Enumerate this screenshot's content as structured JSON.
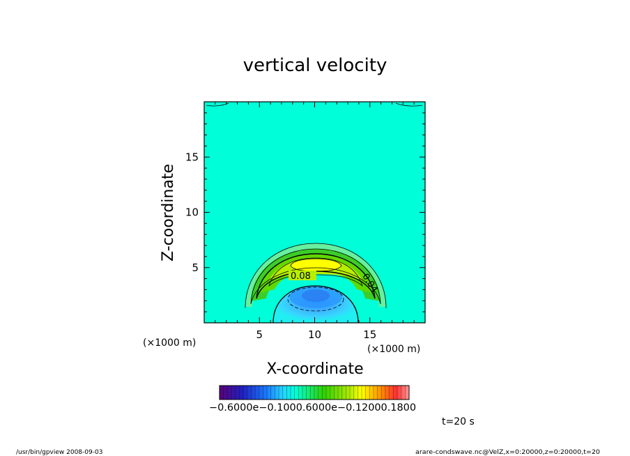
{
  "chart_data": {
    "type": "heatmap",
    "title": "vertical velocity",
    "xlabel": "X-coordinate",
    "ylabel": "Z-coordinate",
    "x_unit_label": "(×1000 m)",
    "z_unit_label": "(×1000 m)",
    "xlim": [
      0,
      20
    ],
    "ylim": [
      0,
      20
    ],
    "x_ticks": [
      5,
      10,
      15
    ],
    "y_ticks": [
      5,
      10,
      15
    ],
    "contour_labels": [
      {
        "text": "0.08",
        "x": 8.9,
        "z": 4.3
      },
      {
        "text": "0.04",
        "x": 14.6,
        "z": 3.7
      }
    ],
    "colorbar": {
      "tick_labels_text": "−0.6000e−0.1000.6000e−0.12000.1800",
      "tick_values": [
        -0.06,
        0.0,
        0.06,
        0.12,
        0.18
      ],
      "range": [
        -0.06,
        0.18
      ]
    },
    "field": {
      "background_value": 0.0,
      "updraft": {
        "x": 10,
        "z": 5.2,
        "peak": 0.11
      },
      "downdraft": {
        "x": 10,
        "z": 2.3,
        "peak": -0.035
      }
    }
  },
  "time_label": "t=20  s",
  "footer": {
    "left": "/usr/bin/gpview   2008-09-03",
    "right": "arare-condswave.nc@VelZ,x=0:20000,z=0:20000,t=20"
  },
  "colors": {
    "background_field": "#00ffd8",
    "updraft_peak": "#ffff00",
    "downdraft_peak": "#2a8cff"
  }
}
